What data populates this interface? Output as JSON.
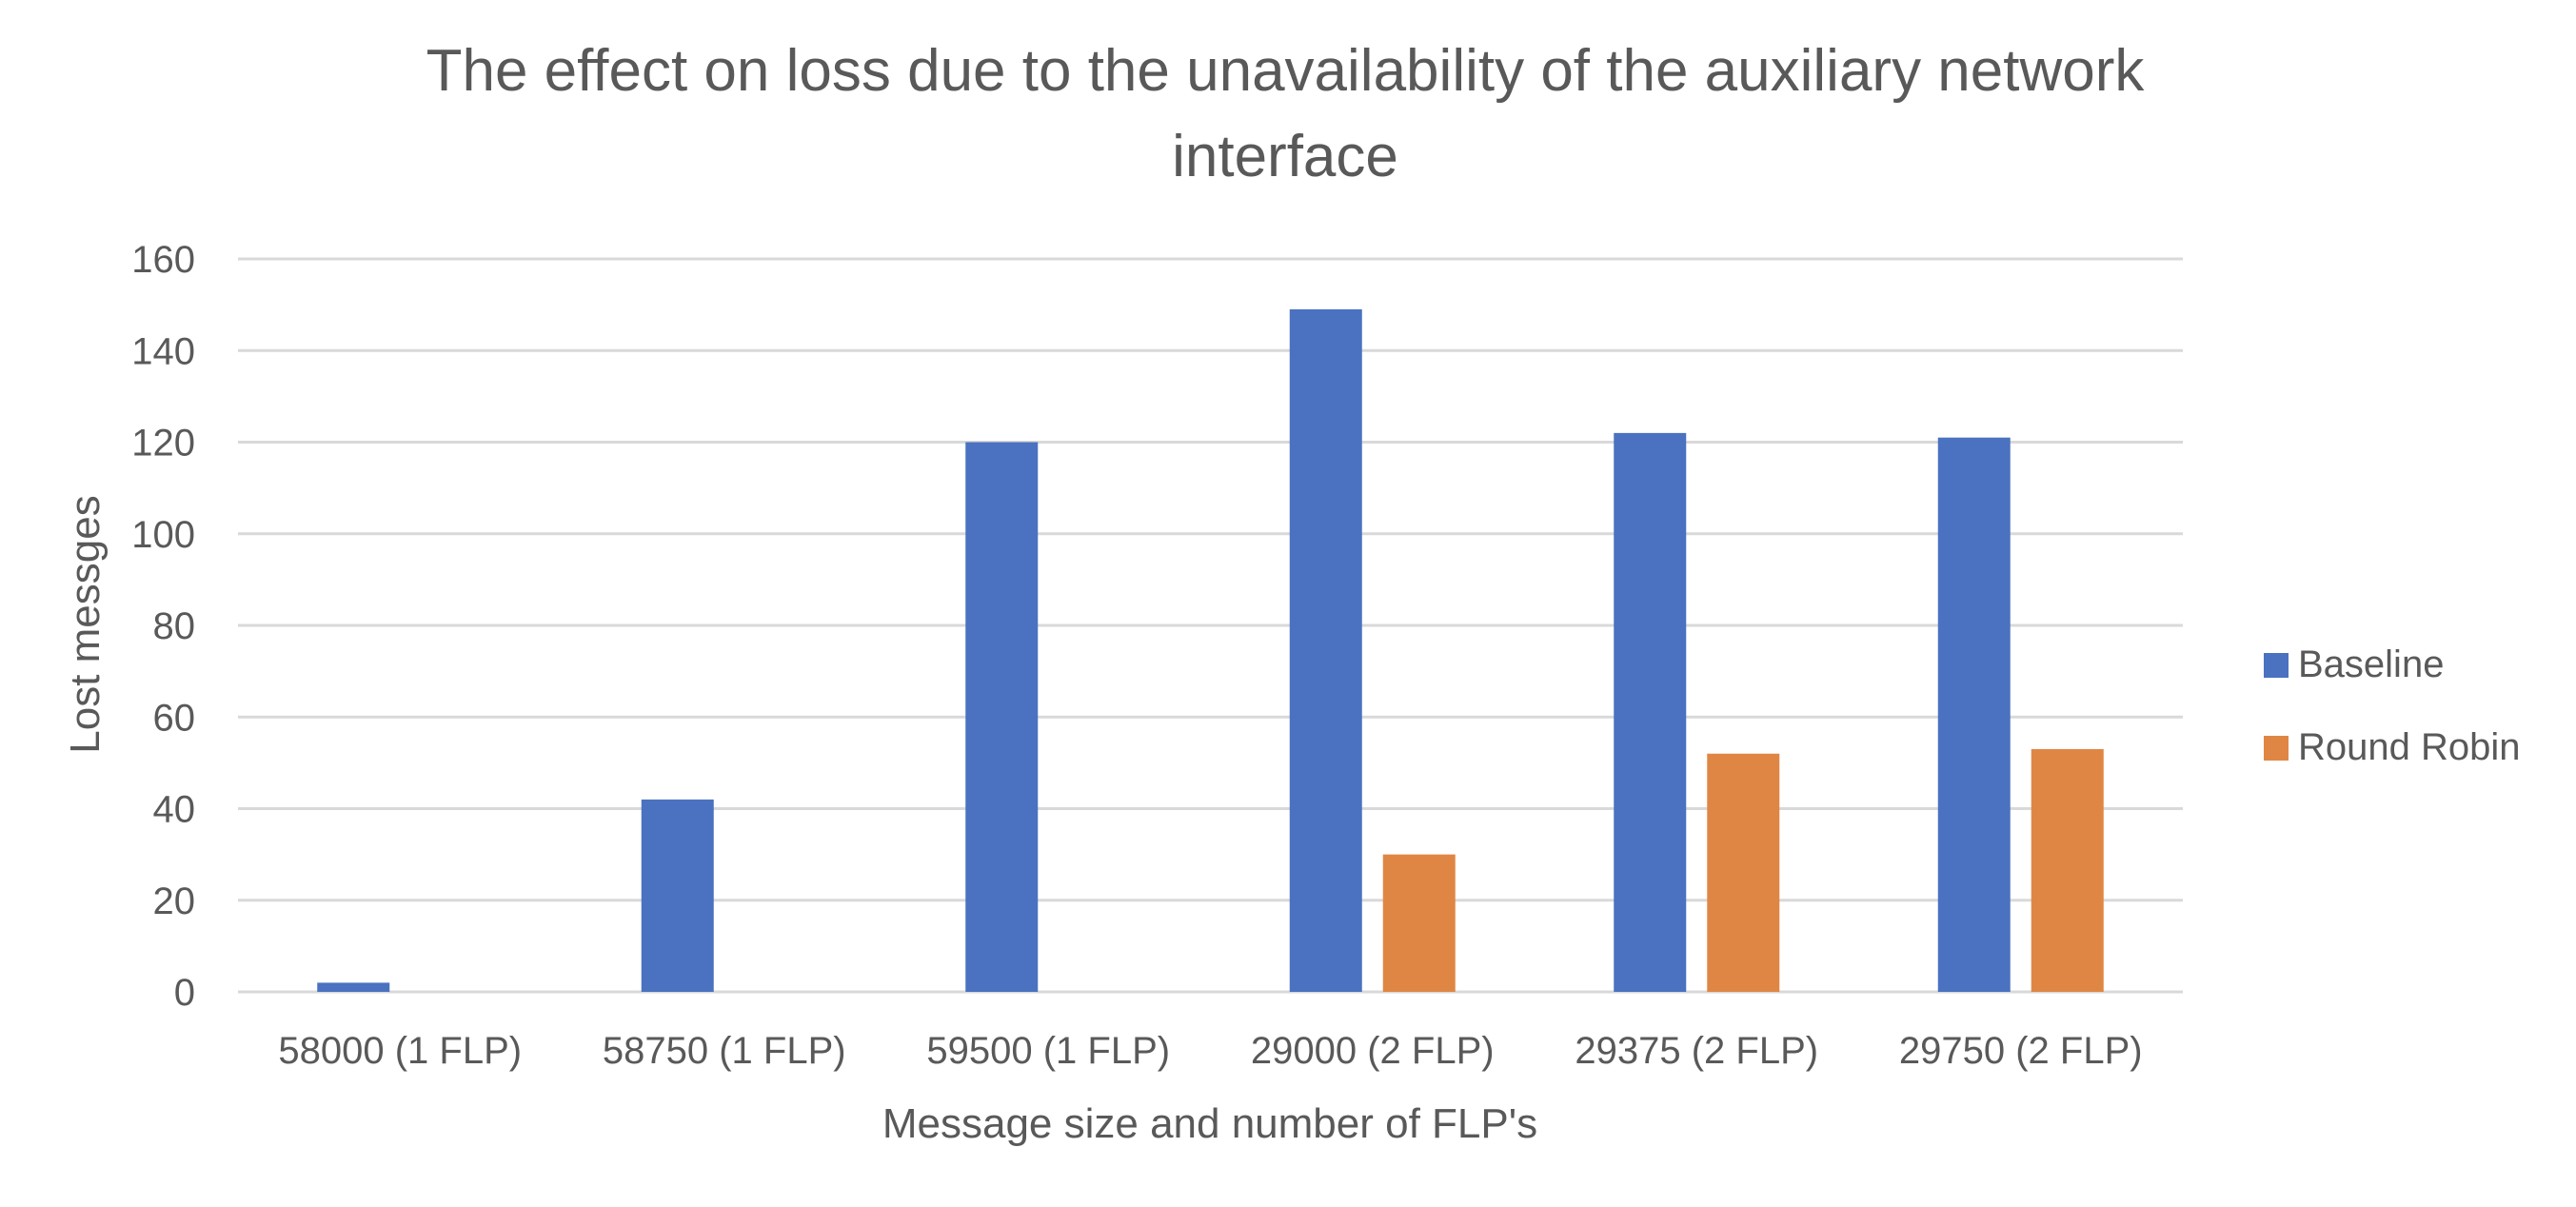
{
  "chart_data": {
    "type": "bar",
    "title": "The effect on loss due to the unavailability of the auxiliary network interface",
    "title_lines": [
      "The effect on loss due to the unavailability of the auxiliary network",
      "interface"
    ],
    "xlabel": "Message size and number of FLP's",
    "ylabel": "Lost messges",
    "categories": [
      "58000 (1 FLP)",
      "58750 (1 FLP)",
      "59500 (1 FLP)",
      "29000 (2 FLP)",
      "29375 (2 FLP)",
      "29750 (2 FLP)"
    ],
    "series": [
      {
        "name": "Baseline",
        "color": "#4a72c0",
        "values": [
          2,
          42,
          120,
          149,
          122,
          121
        ]
      },
      {
        "name": "Round Robin",
        "color": "#e08644",
        "values": [
          0,
          0,
          0,
          30,
          52,
          53
        ]
      }
    ],
    "ylim": [
      0,
      160
    ],
    "yticks": [
      0,
      20,
      40,
      60,
      80,
      100,
      120,
      140,
      160
    ],
    "grid": true,
    "legend_position": "right"
  }
}
